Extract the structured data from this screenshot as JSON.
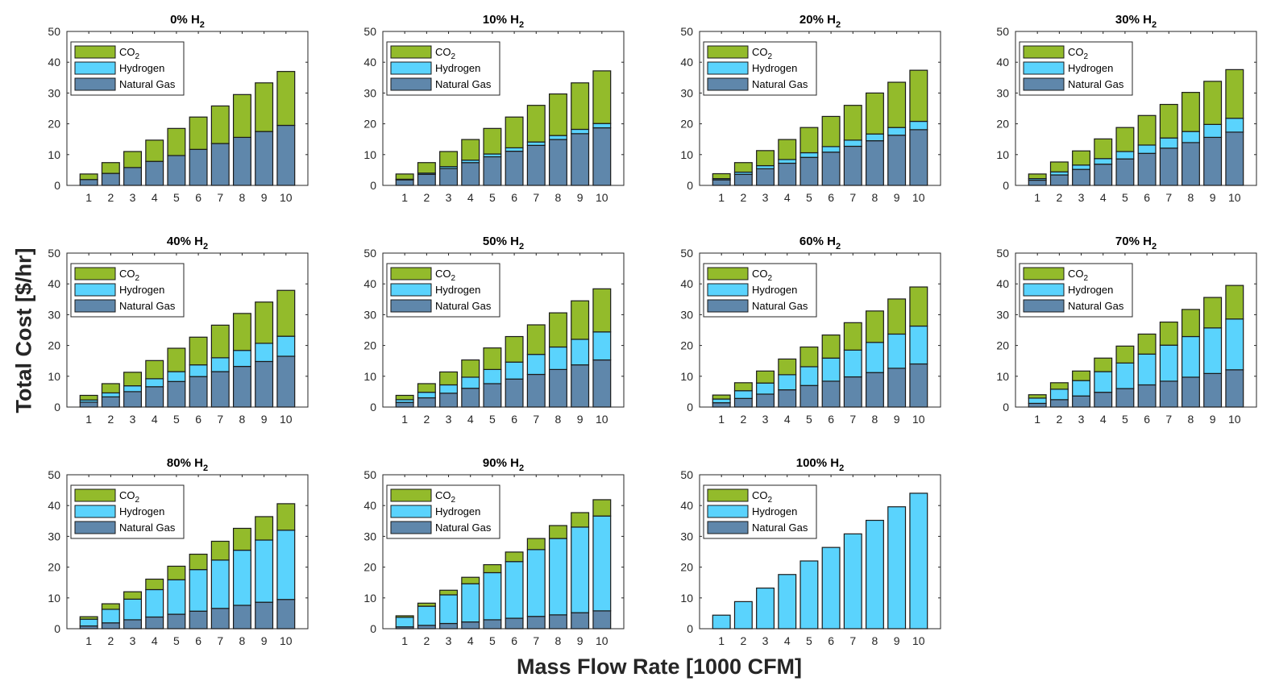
{
  "chart_data": {
    "type": "bar",
    "stacked": true,
    "ylabel": "Total Cost [$/hr]",
    "xlabel": "Mass Flow Rate [1000 CFM]",
    "categories": [
      "1",
      "2",
      "3",
      "4",
      "5",
      "6",
      "7",
      "8",
      "9",
      "10"
    ],
    "ylim": [
      0,
      50
    ],
    "yticks": [
      0,
      10,
      20,
      30,
      40,
      50
    ],
    "grid": false,
    "legend_position": "top-left",
    "legend": [
      {
        "name": "CO2",
        "label_main": "CO",
        "label_sub": "2",
        "color": "#93bb2b"
      },
      {
        "name": "Hydrogen",
        "label_main": "Hydrogen",
        "label_sub": "",
        "color": "#5ad3fd"
      },
      {
        "name": "Natural Gas",
        "label_main": "Natural Gas",
        "label_sub": "",
        "color": "#5f87ab"
      }
    ],
    "stack_order_bottom_to_top": [
      "Natural Gas",
      "Hydrogen",
      "CO2"
    ],
    "subplots": [
      {
        "title_main": "0% H",
        "title_sub": "2",
        "series": {
          "Natural Gas": [
            1.9,
            3.9,
            5.8,
            7.8,
            9.7,
            11.7,
            13.6,
            15.6,
            17.5,
            19.5
          ],
          "Hydrogen": [
            0,
            0,
            0,
            0,
            0,
            0,
            0,
            0,
            0,
            0
          ],
          "CO2": [
            1.8,
            3.5,
            5.2,
            6.9,
            8.8,
            10.5,
            12.2,
            13.9,
            15.8,
            17.5
          ]
        }
      },
      {
        "title_main": "10% H",
        "title_sub": "2",
        "series": {
          "Natural Gas": [
            1.8,
            3.6,
            5.5,
            7.4,
            9.3,
            11.1,
            13.0,
            14.9,
            16.8,
            18.7
          ],
          "Hydrogen": [
            0.2,
            0.4,
            0.6,
            0.8,
            0.9,
            1.1,
            1.1,
            1.3,
            1.4,
            1.4
          ],
          "CO2": [
            1.7,
            3.4,
            4.9,
            6.7,
            8.3,
            10.0,
            11.9,
            13.5,
            15.1,
            17.1
          ]
        }
      },
      {
        "title_main": "20% H",
        "title_sub": "2",
        "series": {
          "Natural Gas": [
            1.8,
            3.6,
            5.4,
            7.2,
            9.1,
            10.8,
            12.7,
            14.5,
            16.3,
            18.1
          ],
          "Hydrogen": [
            0.4,
            0.7,
            1.0,
            1.2,
            1.5,
            1.8,
            2.0,
            2.2,
            2.5,
            2.7
          ],
          "CO2": [
            1.6,
            3.1,
            4.9,
            6.5,
            8.2,
            9.8,
            11.3,
            13.3,
            14.7,
            16.6
          ]
        }
      },
      {
        "title_main": "30% H",
        "title_sub": "2",
        "series": {
          "Natural Gas": [
            1.7,
            3.4,
            5.2,
            6.9,
            8.6,
            10.4,
            12.1,
            13.9,
            15.6,
            17.3
          ],
          "Hydrogen": [
            0.5,
            1.0,
            1.4,
            1.8,
            2.4,
            2.7,
            3.3,
            3.6,
            4.2,
            4.5
          ],
          "CO2": [
            1.5,
            3.2,
            4.6,
            6.4,
            7.8,
            9.6,
            10.9,
            12.7,
            14.0,
            15.8
          ]
        }
      },
      {
        "title_main": "40% H",
        "title_sub": "2",
        "series": {
          "Natural Gas": [
            1.6,
            3.3,
            5.0,
            6.6,
            8.3,
            9.9,
            11.5,
            13.2,
            14.8,
            16.5
          ],
          "Hydrogen": [
            0.7,
            1.3,
            1.9,
            2.6,
            3.2,
            3.8,
            4.5,
            5.2,
            5.9,
            6.5
          ],
          "CO2": [
            1.5,
            3.0,
            4.4,
            5.9,
            7.6,
            9.0,
            10.6,
            12.0,
            13.4,
            14.9
          ]
        }
      },
      {
        "title_main": "50% H",
        "title_sub": "2",
        "series": {
          "Natural Gas": [
            1.5,
            3.0,
            4.5,
            6.1,
            7.6,
            9.1,
            10.6,
            12.2,
            13.7,
            15.3
          ],
          "Hydrogen": [
            0.9,
            1.8,
            2.7,
            3.6,
            4.6,
            5.5,
            6.5,
            7.3,
            8.3,
            9.1
          ],
          "CO2": [
            1.4,
            2.8,
            4.2,
            5.6,
            7.0,
            8.3,
            9.6,
            11.1,
            12.5,
            14.0
          ]
        }
      },
      {
        "title_main": "60% H",
        "title_sub": "2",
        "series": {
          "Natural Gas": [
            1.4,
            2.8,
            4.2,
            5.6,
            7.0,
            8.4,
            9.8,
            11.2,
            12.6,
            14.0
          ],
          "Hydrogen": [
            1.2,
            2.5,
            3.6,
            4.9,
            6.1,
            7.5,
            8.7,
            9.8,
            11.1,
            12.3
          ],
          "CO2": [
            1.3,
            2.6,
            3.9,
            5.1,
            6.4,
            7.5,
            8.9,
            10.2,
            11.4,
            12.7
          ]
        }
      },
      {
        "title_main": "70% H",
        "title_sub": "2",
        "series": {
          "Natural Gas": [
            1.2,
            2.4,
            3.6,
            4.8,
            6.0,
            7.2,
            8.4,
            9.7,
            10.9,
            12.1
          ],
          "Hydrogen": [
            1.7,
            3.4,
            5.0,
            6.7,
            8.3,
            10.0,
            11.7,
            13.2,
            14.8,
            16.5
          ],
          "CO2": [
            1.1,
            2.1,
            3.1,
            4.4,
            5.5,
            6.5,
            7.5,
            8.8,
            9.9,
            10.9
          ]
        }
      },
      {
        "title_main": "80% H",
        "title_sub": "2",
        "series": {
          "Natural Gas": [
            0.9,
            1.9,
            2.9,
            3.8,
            4.7,
            5.7,
            6.6,
            7.6,
            8.6,
            9.5
          ],
          "Hydrogen": [
            2.2,
            4.4,
            6.7,
            8.9,
            11.2,
            13.5,
            15.7,
            17.9,
            20.2,
            22.5
          ],
          "CO2": [
            0.8,
            1.8,
            2.4,
            3.4,
            4.4,
            5.0,
            6.1,
            7.1,
            7.6,
            8.6
          ]
        }
      },
      {
        "title_main": "90% H",
        "title_sub": "2",
        "series": {
          "Natural Gas": [
            0.6,
            1.1,
            1.7,
            2.2,
            2.9,
            3.4,
            4.0,
            4.5,
            5.2,
            5.8
          ],
          "Hydrogen": [
            3.1,
            6.2,
            9.3,
            12.4,
            15.3,
            18.4,
            21.7,
            24.8,
            27.8,
            30.8
          ],
          "CO2": [
            0.5,
            1.0,
            1.5,
            2.1,
            2.6,
            3.1,
            3.6,
            4.2,
            4.7,
            5.3
          ]
        }
      },
      {
        "title_main": "100% H",
        "title_sub": "2",
        "series": {
          "Natural Gas": [
            0,
            0,
            0,
            0,
            0,
            0,
            0,
            0,
            0,
            0
          ],
          "Hydrogen": [
            4.4,
            8.8,
            13.2,
            17.6,
            22.0,
            26.4,
            30.8,
            35.2,
            39.6,
            44.0
          ],
          "CO2": [
            0,
            0,
            0,
            0,
            0,
            0,
            0,
            0,
            0,
            0
          ]
        }
      }
    ]
  }
}
